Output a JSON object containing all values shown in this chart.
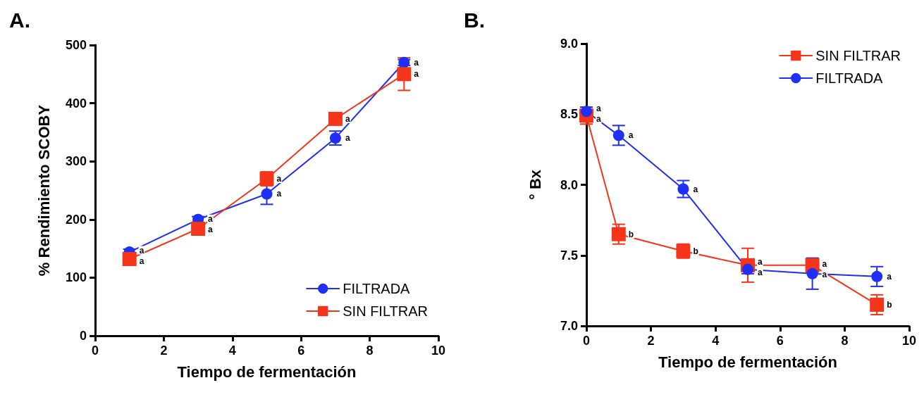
{
  "chart_data": [
    {
      "type": "line",
      "title": "A.",
      "xlabel": "Tiempo de fermentación",
      "ylabel": "% Rendimiento SCOBY",
      "x": [
        1,
        3,
        5,
        7,
        9
      ],
      "xlim": [
        0,
        10
      ],
      "xticks": [
        0,
        2,
        4,
        6,
        8,
        10
      ],
      "ylim": [
        0,
        500
      ],
      "yticks": [
        0,
        100,
        200,
        300,
        400,
        500
      ],
      "grid": false,
      "legend": "bottom right",
      "series": [
        {
          "name": "FILTRADA",
          "color": "#1f2ff5",
          "marker": "circle",
          "values": [
            144,
            200,
            244,
            340,
            470
          ],
          "errors": [
            5,
            5,
            18,
            12,
            5
          ]
        },
        {
          "name": "SIN FILTRAR",
          "color": "#f5341a",
          "marker": "square",
          "values": [
            132,
            184,
            270,
            373,
            450
          ],
          "errors": [
            5,
            5,
            12,
            6,
            28
          ]
        }
      ],
      "annotations": [
        {
          "text": "a",
          "x": 1,
          "y": 144
        },
        {
          "text": "a",
          "x": 1,
          "y": 132
        },
        {
          "text": "a",
          "x": 3,
          "y": 200
        },
        {
          "text": "a",
          "x": 3,
          "y": 184
        },
        {
          "text": "a",
          "x": 5,
          "y": 270
        },
        {
          "text": "a",
          "x": 5,
          "y": 244
        },
        {
          "text": "a",
          "x": 7,
          "y": 373
        },
        {
          "text": "a",
          "x": 7,
          "y": 340
        },
        {
          "text": "a",
          "x": 9,
          "y": 470
        },
        {
          "text": "a",
          "x": 9,
          "y": 450
        }
      ]
    },
    {
      "type": "line",
      "title": "B.",
      "xlabel": "Tiempo de fermentación",
      "ylabel": "° Bx",
      "x": [
        0,
        1,
        3,
        5,
        7,
        9
      ],
      "xlim": [
        0,
        10
      ],
      "xticks": [
        0,
        2,
        4,
        6,
        8,
        10
      ],
      "ylim": [
        7,
        9
      ],
      "yticks": [
        {
          "value": 7,
          "label": "7.0"
        },
        7.5,
        {
          "value": 8,
          "label": "8.0"
        },
        8.5,
        {
          "value": 9,
          "label": "9.0"
        }
      ],
      "grid": false,
      "legend": "top right",
      "series": [
        {
          "name": "SIN FILTRAR",
          "color": "#f5341a",
          "marker": "square",
          "values": [
            8.49,
            7.65,
            7.53,
            7.43,
            7.43,
            7.15
          ],
          "errors": [
            0.06,
            0.07,
            0.05,
            0.12,
            0.05,
            0.07
          ]
        },
        {
          "name": "FILTRADA",
          "color": "#1f2ff5",
          "marker": "circle",
          "values": [
            8.52,
            8.35,
            7.97,
            7.4,
            7.37,
            7.35
          ],
          "errors": [
            0.03,
            0.07,
            0.06,
            0.03,
            0.11,
            0.07
          ]
        }
      ],
      "annotations": [
        {
          "text": "a",
          "x": 0,
          "y": 8.52
        },
        {
          "text": "a",
          "x": 0,
          "y": 8.49
        },
        {
          "text": "a",
          "x": 1,
          "y": 8.35
        },
        {
          "text": "b",
          "x": 1,
          "y": 7.65
        },
        {
          "text": "a",
          "x": 3,
          "y": 7.97
        },
        {
          "text": "b",
          "x": 3,
          "y": 7.53
        },
        {
          "text": "a",
          "x": 5,
          "y": 7.43
        },
        {
          "text": "a",
          "x": 5,
          "y": 7.4
        },
        {
          "text": "a",
          "x": 7,
          "y": 7.43
        },
        {
          "text": "a",
          "x": 7,
          "y": 7.37
        },
        {
          "text": "a",
          "x": 9,
          "y": 7.35
        },
        {
          "text": "b",
          "x": 9,
          "y": 7.15
        }
      ]
    }
  ]
}
